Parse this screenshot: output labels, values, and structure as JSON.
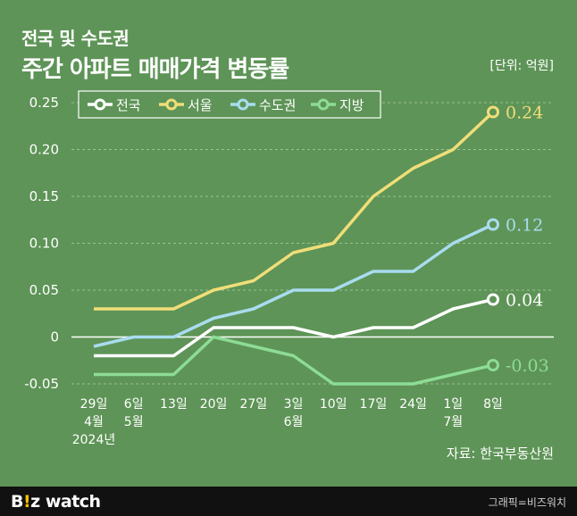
{
  "header": {
    "title_line1": "전국 및 수도권",
    "title_line2": "주간 아파트 매매가격 변동률",
    "unit": "[단위: 억원]"
  },
  "source": "자료: 한국부동산원",
  "footer": {
    "logo_pre": "B",
    "logo_mark": "!",
    "logo_post": "z watch",
    "credit": "그래픽=비즈워치"
  },
  "colors": {
    "background": "#5e9457",
    "전국": "#ffffff",
    "서울": "#f0de79",
    "수도권": "#a9dcef",
    "지방": "#8ddc95",
    "grid": "#9cc094",
    "footer": "#111111"
  },
  "chart_data": {
    "type": "line",
    "categories": [
      [
        "29일",
        "4월",
        "2024년"
      ],
      [
        "6일",
        "5월"
      ],
      [
        "13일"
      ],
      [
        "20일"
      ],
      [
        "27일"
      ],
      [
        "3일",
        "6월"
      ],
      [
        "10일"
      ],
      [
        "17일"
      ],
      [
        "24일"
      ],
      [
        "1일",
        "7월"
      ],
      [
        "8일"
      ]
    ],
    "y_ticks": [
      "0.25",
      "0.20",
      "0.15",
      "0.10",
      "0.05",
      "0",
      "-0.05"
    ],
    "ylim": [
      -0.05,
      0.25
    ],
    "grid": "dashed horizontal",
    "legend_position": "top-left",
    "series": [
      {
        "name": "전국",
        "color": "#ffffff",
        "values": [
          -0.02,
          -0.02,
          -0.02,
          0.01,
          0.01,
          0.01,
          0.0,
          0.01,
          0.01,
          0.03,
          0.04
        ],
        "end_label": "0.04"
      },
      {
        "name": "서울",
        "color": "#f0de79",
        "values": [
          0.03,
          0.03,
          0.03,
          0.05,
          0.06,
          0.09,
          0.1,
          0.15,
          0.18,
          0.2,
          0.24
        ],
        "end_label": "0.24"
      },
      {
        "name": "수도권",
        "color": "#a9dcef",
        "values": [
          -0.01,
          0.0,
          0.0,
          0.02,
          0.03,
          0.05,
          0.05,
          0.07,
          0.07,
          0.1,
          0.12
        ],
        "end_label": "0.12"
      },
      {
        "name": "지방",
        "color": "#8ddc95",
        "values": [
          -0.04,
          -0.04,
          -0.04,
          0.0,
          -0.01,
          -0.02,
          -0.05,
          -0.05,
          -0.05,
          -0.04,
          -0.03
        ],
        "end_label": "-0.03"
      }
    ]
  }
}
